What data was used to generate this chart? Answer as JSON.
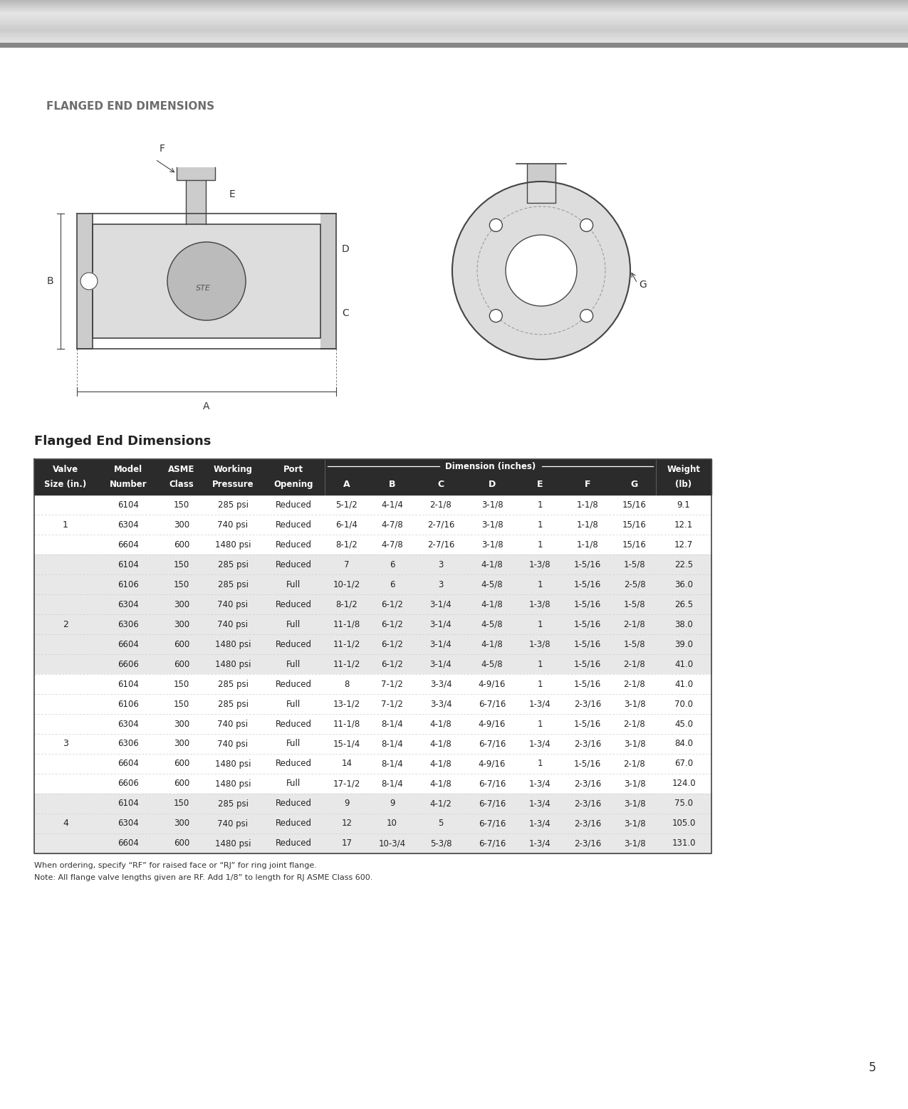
{
  "page_title": "FLANGED END DIMENSIONS",
  "table_title": "Flanged End Dimensions",
  "header_bg": "#2b2b2b",
  "header_text_color": "#ffffff",
  "row_alt_color": "#e8e8e8",
  "row_white_color": "#ffffff",
  "border_color": "#cccccc",
  "title_color": "#6d6d6d",
  "table_title_color": "#222222",
  "note_color": "#333333",
  "page_num_color": "#333333",
  "dim_header": "Dimension (inches)",
  "rows": [
    [
      "1",
      "6104",
      "150",
      "285 psi",
      "Reduced",
      "5-1/2",
      "4-1/4",
      "2-1/8",
      "3-1/8",
      "1",
      "1-1/8",
      "15/16",
      "9.1"
    ],
    [
      "1",
      "6304",
      "300",
      "740 psi",
      "Reduced",
      "6-1/4",
      "4-7/8",
      "2-7/16",
      "3-1/8",
      "1",
      "1-1/8",
      "15/16",
      "12.1"
    ],
    [
      "1",
      "6604",
      "600",
      "1480 psi",
      "Reduced",
      "8-1/2",
      "4-7/8",
      "2-7/16",
      "3-1/8",
      "1",
      "1-1/8",
      "15/16",
      "12.7"
    ],
    [
      "2",
      "6104",
      "150",
      "285 psi",
      "Reduced",
      "7",
      "6",
      "3",
      "4-1/8",
      "1-3/8",
      "1-5/16",
      "1-5/8",
      "22.5"
    ],
    [
      "2",
      "6106",
      "150",
      "285 psi",
      "Full",
      "10-1/2",
      "6",
      "3",
      "4-5/8",
      "1",
      "1-5/16",
      "2-5/8",
      "36.0"
    ],
    [
      "2",
      "6304",
      "300",
      "740 psi",
      "Reduced",
      "8-1/2",
      "6-1/2",
      "3-1/4",
      "4-1/8",
      "1-3/8",
      "1-5/16",
      "1-5/8",
      "26.5"
    ],
    [
      "2",
      "6306",
      "300",
      "740 psi",
      "Full",
      "11-1/8",
      "6-1/2",
      "3-1/4",
      "4-5/8",
      "1",
      "1-5/16",
      "2-1/8",
      "38.0"
    ],
    [
      "2",
      "6604",
      "600",
      "1480 psi",
      "Reduced",
      "11-1/2",
      "6-1/2",
      "3-1/4",
      "4-1/8",
      "1-3/8",
      "1-5/16",
      "1-5/8",
      "39.0"
    ],
    [
      "2",
      "6606",
      "600",
      "1480 psi",
      "Full",
      "11-1/2",
      "6-1/2",
      "3-1/4",
      "4-5/8",
      "1",
      "1-5/16",
      "2-1/8",
      "41.0"
    ],
    [
      "3",
      "6104",
      "150",
      "285 psi",
      "Reduced",
      "8",
      "7-1/2",
      "3-3/4",
      "4-9/16",
      "1",
      "1-5/16",
      "2-1/8",
      "41.0"
    ],
    [
      "3",
      "6106",
      "150",
      "285 psi",
      "Full",
      "13-1/2",
      "7-1/2",
      "3-3/4",
      "6-7/16",
      "1-3/4",
      "2-3/16",
      "3-1/8",
      "70.0"
    ],
    [
      "3",
      "6304",
      "300",
      "740 psi",
      "Reduced",
      "11-1/8",
      "8-1/4",
      "4-1/8",
      "4-9/16",
      "1",
      "1-5/16",
      "2-1/8",
      "45.0"
    ],
    [
      "3",
      "6306",
      "300",
      "740 psi",
      "Full",
      "15-1/4",
      "8-1/4",
      "4-1/8",
      "6-7/16",
      "1-3/4",
      "2-3/16",
      "3-1/8",
      "84.0"
    ],
    [
      "3",
      "6604",
      "600",
      "1480 psi",
      "Reduced",
      "14",
      "8-1/4",
      "4-1/8",
      "4-9/16",
      "1",
      "1-5/16",
      "2-1/8",
      "67.0"
    ],
    [
      "3",
      "6606",
      "600",
      "1480 psi",
      "Full",
      "17-1/2",
      "8-1/4",
      "4-1/8",
      "6-7/16",
      "1-3/4",
      "2-3/16",
      "3-1/8",
      "124.0"
    ],
    [
      "4",
      "6104",
      "150",
      "285 psi",
      "Reduced",
      "9",
      "9",
      "4-1/2",
      "6-7/16",
      "1-3/4",
      "2-3/16",
      "3-1/8",
      "75.0"
    ],
    [
      "4",
      "6304",
      "300",
      "740 psi",
      "Reduced",
      "12",
      "10",
      "5",
      "6-7/16",
      "1-3/4",
      "2-3/16",
      "3-1/8",
      "105.0"
    ],
    [
      "4",
      "6604",
      "600",
      "1480 psi",
      "Reduced",
      "17",
      "10-3/4",
      "5-3/8",
      "6-7/16",
      "1-3/4",
      "2-3/16",
      "3-1/8",
      "131.0"
    ]
  ],
  "valve_size_groups": {
    "1": [
      0,
      1,
      2
    ],
    "2": [
      3,
      4,
      5,
      6,
      7,
      8
    ],
    "3": [
      9,
      10,
      11,
      12,
      13,
      14
    ],
    "4": [
      15,
      16,
      17
    ]
  },
  "note_line1": "When ordering, specify “RF” for raised face or “RJ” for ring joint flange.",
  "note_line2": "Note: All flange valve lengths given are RF. Add 1/8” to length for RJ ASME Class 600.",
  "page_number": "5"
}
